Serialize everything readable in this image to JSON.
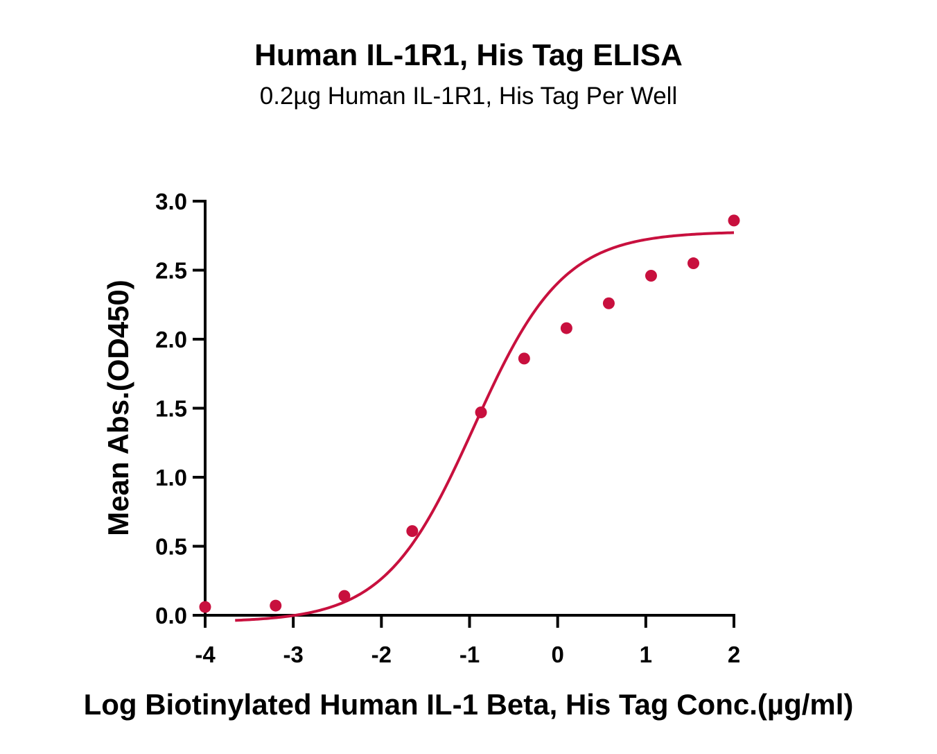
{
  "chart_data": {
    "type": "scatter",
    "title": "Human IL-1R1, His Tag ELISA",
    "subtitle": "0.2µg Human IL-1R1, His Tag Per Well",
    "xlabel": "Log Biotinylated Human IL-1 Beta, His Tag Conc.(µg/ml)",
    "ylabel": "Mean Abs.(OD450)",
    "xlim": [
      -4,
      2
    ],
    "ylim": [
      0,
      3
    ],
    "x_ticks": [
      -4,
      -3,
      -2,
      -1,
      0,
      1,
      2
    ],
    "x_tick_labels": [
      "-4",
      "-3",
      "-2",
      "-1",
      "0",
      "1",
      "2"
    ],
    "y_ticks": [
      0,
      0.5,
      1,
      1.5,
      2,
      2.5,
      3
    ],
    "y_tick_labels": [
      "0.0",
      "0.5",
      "1.0",
      "1.5",
      "2.0",
      "2.5",
      "3.0"
    ],
    "grid": false,
    "color": "#c8103e",
    "series": [
      {
        "x": [
          -4.0,
          -3.2,
          -2.42,
          -1.65,
          -0.87,
          -0.38,
          0.1,
          0.58,
          1.06,
          1.54,
          2.0
        ],
        "y": [
          0.06,
          0.07,
          0.14,
          0.61,
          1.47,
          1.86,
          2.08,
          2.26,
          2.46,
          2.55,
          2.86
        ]
      }
    ],
    "fit": {
      "type": "4PL",
      "bottom": -0.05,
      "top": 2.78,
      "logEC50": -0.95,
      "hill": 0.86,
      "x_start": -3.66,
      "x_end": 2.0
    }
  }
}
